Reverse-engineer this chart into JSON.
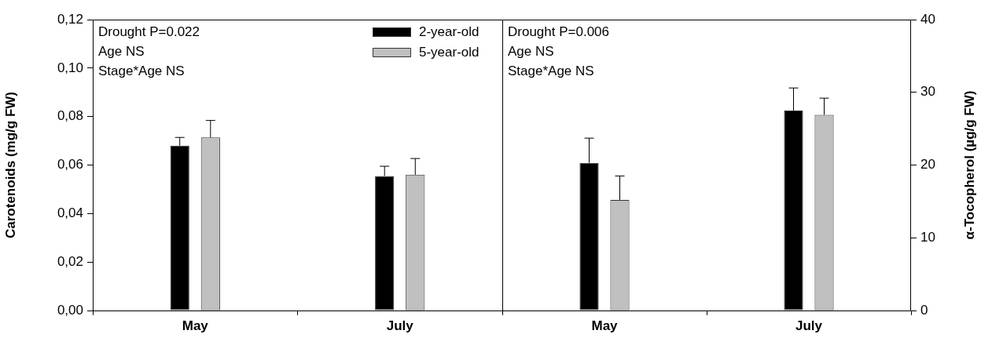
{
  "chart_data": [
    {
      "type": "bar",
      "categories": [
        "May",
        "July"
      ],
      "ylabel": "Carotenoids (mg/g FW)",
      "ylim": [
        0,
        0.12
      ],
      "yticks": [
        {
          "value": 0,
          "label": "0,00"
        },
        {
          "value": 0.02,
          "label": "0,02"
        },
        {
          "value": 0.04,
          "label": "0,04"
        },
        {
          "value": 0.06,
          "label": "0,06"
        },
        {
          "value": 0.08,
          "label": "0,08"
        },
        {
          "value": 0.1,
          "label": "0,10"
        },
        {
          "value": 0.12,
          "label": "0,12"
        }
      ],
      "legend": "top right",
      "grid": false,
      "annotations": [
        "Drought P=0.022",
        "Age NS",
        "Stage*Age NS"
      ],
      "series": [
        {
          "name": "2-year-old",
          "color": "#000000",
          "values": [
            0.068,
            0.0555
          ],
          "errors": [
            0.0034,
            0.004
          ]
        },
        {
          "name": "5-year-old",
          "color": "#c0c0c0",
          "values": [
            0.0714,
            0.056
          ],
          "errors": [
            0.007,
            0.0067
          ]
        }
      ]
    },
    {
      "type": "bar",
      "categories": [
        "May",
        "July"
      ],
      "y2label": "α-Tocopherol (µg/g FW)",
      "y2lim": [
        0,
        40
      ],
      "y2ticks": [
        0,
        10,
        20,
        30,
        40
      ],
      "grid": false,
      "annotations": [
        "Drought P=0.006",
        "Age NS",
        "Stage*Age NS"
      ],
      "series": [
        {
          "color": "#000000",
          "axis": "y2",
          "values": [
            20.3,
            27.5
          ],
          "errors": [
            3.4,
            3.1
          ]
        },
        {
          "color": "#c0c0c0",
          "axis": "y2",
          "values": [
            15.2,
            26.9
          ],
          "errors": [
            3.3,
            2.3
          ]
        }
      ]
    }
  ]
}
